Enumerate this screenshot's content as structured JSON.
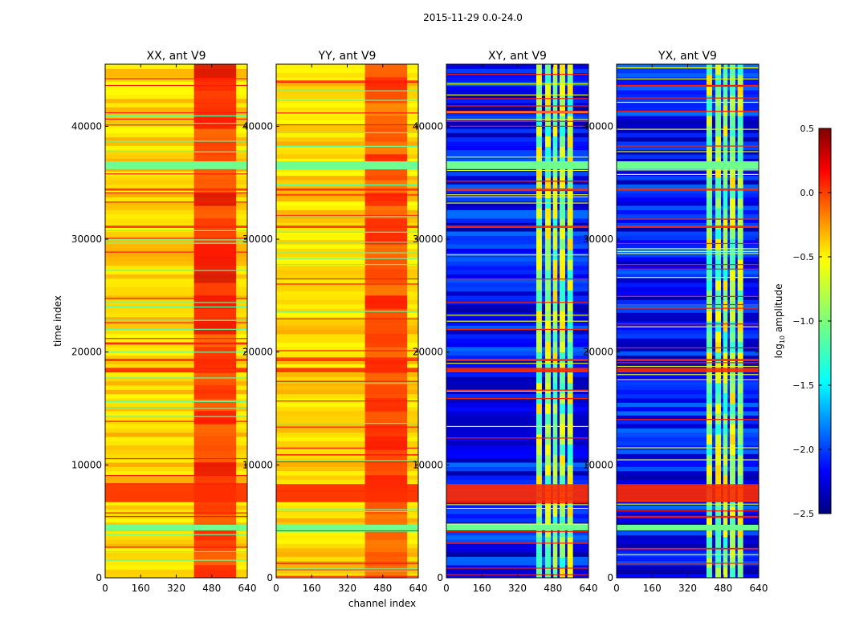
{
  "figure": {
    "suptitle": "2015-11-29 0.0-24.0"
  },
  "chart_data": {
    "type": "heatmap",
    "suptitle": "2015-11-29 0.0-24.0",
    "xlabel": "channel index",
    "ylabel": "time index",
    "xlim": [
      0,
      640
    ],
    "ylim": [
      0,
      45500
    ],
    "xticks": [
      0,
      160,
      320,
      480,
      640
    ],
    "yticks": [
      0,
      10000,
      20000,
      30000,
      40000
    ],
    "colormap": "jet",
    "panels": [
      {
        "title": "XX, ant V9",
        "polarization": "XX",
        "kind": "parallel"
      },
      {
        "title": "YY, ant V9",
        "polarization": "YY",
        "kind": "parallel"
      },
      {
        "title": "XY, ant V9",
        "polarization": "XY",
        "kind": "cross"
      },
      {
        "title": "YX, ant V9",
        "polarization": "YX",
        "kind": "cross"
      }
    ],
    "colorbar": {
      "label": "log10 amplitude",
      "label_main": "log",
      "label_sub": "10",
      "label_rest": " amplitude",
      "min": -2.5,
      "max": 0.5,
      "ticks": [
        0.5,
        0.0,
        -0.5,
        -1.0,
        -1.5,
        -2.0,
        -2.5
      ],
      "tick_labels": [
        "0.5",
        "0.0",
        "−0.5",
        "−1.0",
        "−1.5",
        "−2.0",
        "−2.5"
      ]
    },
    "features": {
      "flagged_block_time": [
        36200,
        36900
      ],
      "flagged_block_time_2": [
        4200,
        4700
      ],
      "rfi_time_bands": [
        {
          "start": 6700,
          "end": 8300
        },
        {
          "start": 18200,
          "end": 18600
        },
        {
          "start": 31000,
          "end": 31200
        },
        {
          "start": 19200,
          "end": 19400
        },
        {
          "start": 34300,
          "end": 34500
        }
      ],
      "bright_channel_range": [
        400,
        590
      ],
      "cross_bright_channel_columns": [
        [
          405,
          430
        ],
        [
          445,
          470
        ],
        [
          480,
          500
        ],
        [
          510,
          535
        ],
        [
          545,
          570
        ]
      ],
      "parallel_level_log10": -0.5,
      "cross_level_log10": -2.1,
      "flagged_level_log10": -1.05
    }
  }
}
